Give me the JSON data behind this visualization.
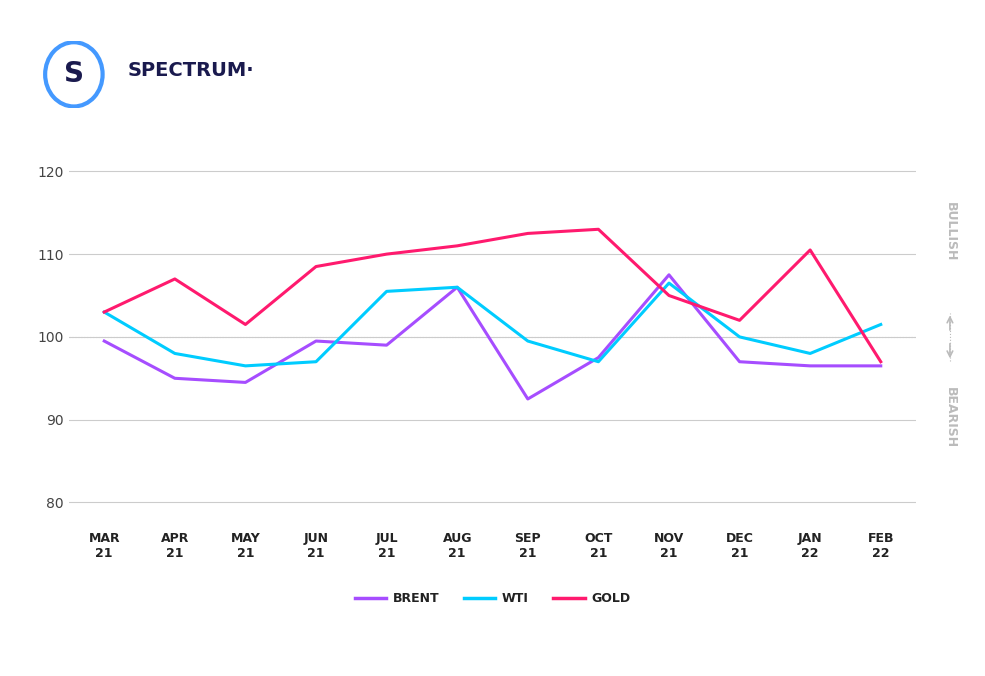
{
  "months": [
    "MAR\n21",
    "APR\n21",
    "MAY\n21",
    "JUN\n21",
    "JUL\n21",
    "AUG\n21",
    "SEP\n21",
    "OCT\n21",
    "NOV\n21",
    "DEC\n21",
    "JAN\n22",
    "FEB\n22"
  ],
  "brent": [
    99.5,
    95.0,
    94.5,
    99.5,
    99.0,
    106.0,
    92.5,
    97.5,
    107.5,
    97.0,
    96.5,
    96.5
  ],
  "wti": [
    103.0,
    98.0,
    96.5,
    97.0,
    105.5,
    106.0,
    99.5,
    97.0,
    106.5,
    100.0,
    98.0,
    101.5
  ],
  "gold": [
    103.0,
    107.0,
    101.5,
    108.5,
    110.0,
    111.0,
    112.5,
    113.0,
    105.0,
    102.0,
    110.5,
    97.0
  ],
  "brent_color": "#a64dff",
  "wti_color": "#00ccff",
  "gold_color": "#ff1a6e",
  "background_color": "#ffffff",
  "grid_color": "#cccccc",
  "dotted_line_y": 100,
  "ylim": [
    77,
    126
  ],
  "yticks": [
    80,
    90,
    100,
    110,
    120
  ],
  "title_text": "SPECTRUM·",
  "bullish_label": "BULLISH",
  "bearish_label": "BEARISH",
  "legend_labels": [
    "BRENT",
    "WTI",
    "GOLD"
  ],
  "right_label_color": "#bbbbbb",
  "line_width": 2.2
}
